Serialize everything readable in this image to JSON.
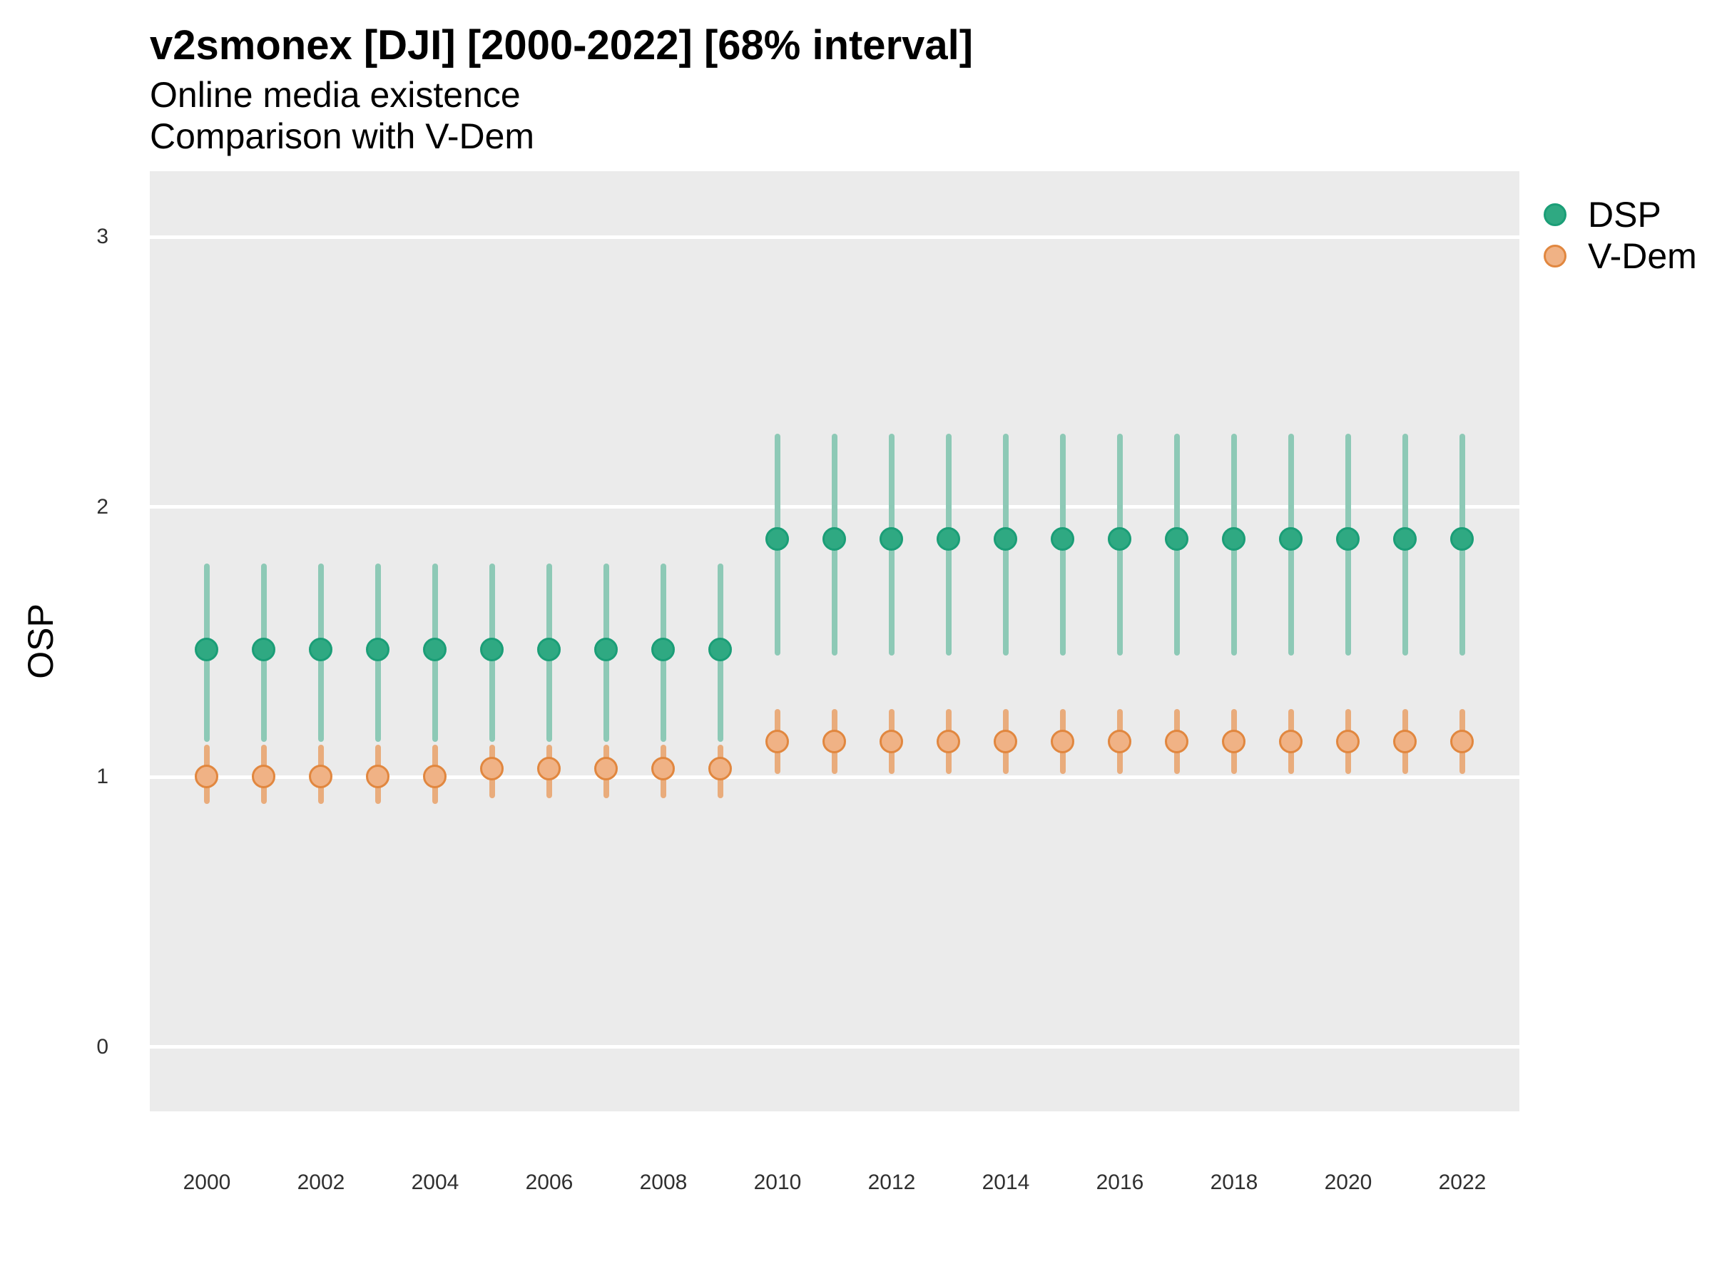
{
  "header": {
    "title": "v2smonex [DJI] [2000-2022] [68% interval]",
    "subtitle_line1": "Online media existence",
    "subtitle_line2": "Comparison with V-Dem"
  },
  "y_axis_title": "OSP",
  "legend": {
    "position": "top-right-outside",
    "items": [
      {
        "label": "DSP",
        "key": "dsp"
      },
      {
        "label": "V-Dem",
        "key": "vdem"
      }
    ]
  },
  "colors": {
    "dsp": "#1B9E77",
    "dsp_line": "#8DC9B6",
    "dsp_fill": "#2FA982",
    "dsp_stroke": "#1B9E77",
    "vdem": "#E6873C",
    "vdem_line": "#E9AC7C",
    "vdem_fill": "#F0B285",
    "vdem_stroke": "#E1873F",
    "panel_background": "#EBEBEB",
    "gridline": "#FFFFFF",
    "tick_text": "#303030",
    "title_text": "#000000"
  },
  "chart_data": {
    "type": "scatter",
    "subtype": "pointrange (point with 68% interval bars)",
    "title": "v2smonex [DJI] [2000-2022] [68% interval]",
    "subtitle": [
      "Online media existence",
      "Comparison with V-Dem"
    ],
    "xlabel": "",
    "ylabel": "OSP",
    "x": [
      2000,
      2001,
      2002,
      2003,
      2004,
      2005,
      2006,
      2007,
      2008,
      2009,
      2010,
      2011,
      2012,
      2013,
      2014,
      2015,
      2016,
      2017,
      2018,
      2019,
      2020,
      2021,
      2022
    ],
    "x_tick_labels": [
      "2000",
      "2002",
      "2004",
      "2006",
      "2008",
      "2010",
      "2012",
      "2014",
      "2016",
      "2018",
      "2020",
      "2022"
    ],
    "y_ticks": [
      0,
      1,
      2,
      3
    ],
    "ylim": [
      -0.24,
      3.25
    ],
    "grid": "horizontal-major-only",
    "legend_position": "right-top",
    "series": [
      {
        "name": "DSP",
        "key": "dsp",
        "values": [
          1.47,
          1.47,
          1.47,
          1.47,
          1.47,
          1.47,
          1.47,
          1.47,
          1.47,
          1.47,
          1.88,
          1.88,
          1.88,
          1.88,
          1.88,
          1.88,
          1.88,
          1.88,
          1.88,
          1.88,
          1.88,
          1.88,
          1.88
        ],
        "lo": [
          1.13,
          1.13,
          1.13,
          1.13,
          1.13,
          1.13,
          1.13,
          1.13,
          1.13,
          1.13,
          1.45,
          1.45,
          1.45,
          1.45,
          1.45,
          1.45,
          1.45,
          1.45,
          1.45,
          1.45,
          1.45,
          1.45,
          1.45
        ],
        "hi": [
          1.79,
          1.79,
          1.79,
          1.79,
          1.79,
          1.79,
          1.79,
          1.79,
          1.79,
          1.79,
          2.27,
          2.27,
          2.27,
          2.27,
          2.27,
          2.27,
          2.27,
          2.27,
          2.27,
          2.27,
          2.27,
          2.27,
          2.27
        ]
      },
      {
        "name": "V-Dem",
        "key": "vdem",
        "values": [
          1.0,
          1.0,
          1.0,
          1.0,
          1.0,
          1.03,
          1.03,
          1.03,
          1.03,
          1.03,
          1.13,
          1.13,
          1.13,
          1.13,
          1.13,
          1.13,
          1.13,
          1.13,
          1.13,
          1.13,
          1.13,
          1.13,
          1.13
        ],
        "lo": [
          0.9,
          0.9,
          0.9,
          0.9,
          0.9,
          0.92,
          0.92,
          0.92,
          0.92,
          0.92,
          1.01,
          1.01,
          1.01,
          1.01,
          1.01,
          1.01,
          1.01,
          1.01,
          1.01,
          1.01,
          1.01,
          1.01,
          1.01
        ],
        "hi": [
          1.12,
          1.12,
          1.12,
          1.12,
          1.12,
          1.12,
          1.12,
          1.12,
          1.12,
          1.12,
          1.25,
          1.25,
          1.25,
          1.25,
          1.25,
          1.25,
          1.25,
          1.25,
          1.25,
          1.25,
          1.25,
          1.25,
          1.25
        ]
      }
    ]
  }
}
